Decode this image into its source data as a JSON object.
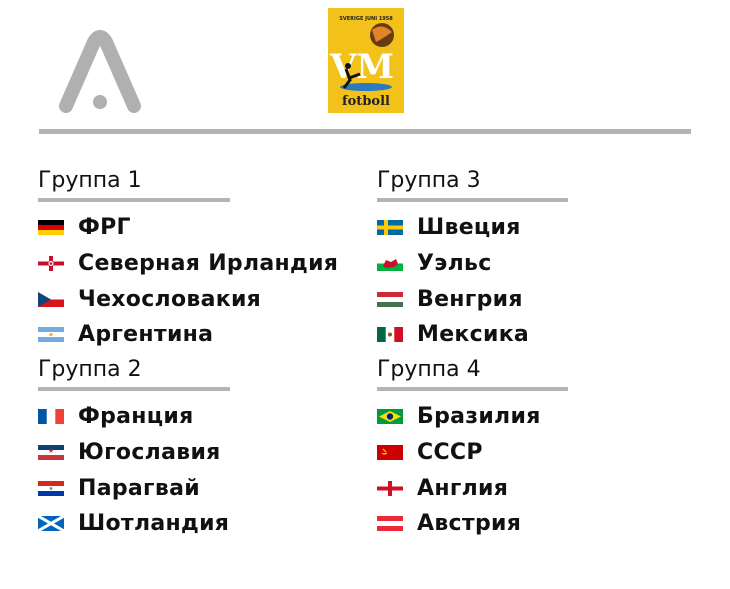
{
  "poster": {
    "top_text": "SVERIGE JUNI 1958",
    "big_text": "VM",
    "bottom_text": "fotboll"
  },
  "groups": [
    {
      "title": "Группа 1",
      "teams": [
        {
          "name": "ФРГ",
          "flag": "germany"
        },
        {
          "name": "Северная Ирландия",
          "flag": "northern-ireland"
        },
        {
          "name": "Чехословакия",
          "flag": "czechoslovakia"
        },
        {
          "name": "Аргентина",
          "flag": "argentina"
        }
      ]
    },
    {
      "title": "Группа 2",
      "teams": [
        {
          "name": "Франция",
          "flag": "france"
        },
        {
          "name": "Югославия",
          "flag": "yugoslavia"
        },
        {
          "name": "Парагвай",
          "flag": "paraguay"
        },
        {
          "name": "Шотландия",
          "flag": "scotland"
        }
      ]
    },
    {
      "title": "Группа 3",
      "teams": [
        {
          "name": "Швеция",
          "flag": "sweden"
        },
        {
          "name": "Уэльс",
          "flag": "wales"
        },
        {
          "name": "Венгрия",
          "flag": "hungary"
        },
        {
          "name": "Мексика",
          "flag": "mexico"
        }
      ]
    },
    {
      "title": "Группа 4",
      "teams": [
        {
          "name": "Бразилия",
          "flag": "brazil"
        },
        {
          "name": "СССР",
          "flag": "ussr"
        },
        {
          "name": "Англия",
          "flag": "england"
        },
        {
          "name": "Австрия",
          "flag": "austria"
        }
      ]
    }
  ]
}
